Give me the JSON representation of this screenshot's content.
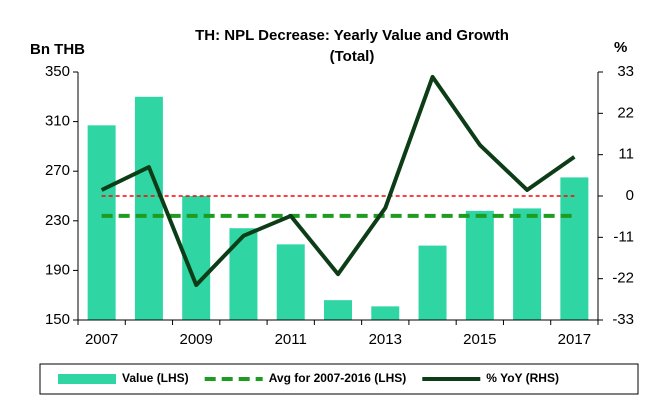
{
  "chart_data": {
    "type": "bar_line",
    "title": [
      "TH: NPL Decrease: Yearly Value and Growth",
      "(Total)"
    ],
    "y_label": "Bn THB",
    "y2_label": "%",
    "categories": [
      "2007",
      null,
      "2009",
      null,
      "2011",
      null,
      "2013",
      null,
      "2015",
      null,
      "2017"
    ],
    "series": [
      {
        "name": "Value (LHS)",
        "color": "#2fd6a4",
        "type": "bar",
        "values": [
          307,
          330,
          250,
          224,
          211,
          166,
          161,
          210,
          238,
          240,
          265
        ]
      },
      {
        "name": "Avg for 2007-2016 (LHS)",
        "color": "#1e9c22",
        "type": "hline",
        "value": 234
      },
      {
        "name": "% YoY (RHS)",
        "color": "#0d3d17",
        "type": "line",
        "axis": "y2",
        "values": [
          1.6,
          7.7,
          -23.7,
          -10.6,
          -5.3,
          -20.8,
          -3.2,
          31.7,
          13.6,
          1.6,
          10.4
        ]
      }
    ],
    "y2_reference": {
      "value": 0,
      "color": "#ff0000"
    },
    "ylim": [
      150,
      350
    ],
    "yticks": [
      150,
      190,
      230,
      270,
      310,
      350
    ],
    "y2lim": [
      -33,
      33
    ],
    "y2ticks": [
      -33,
      -22,
      -11,
      0,
      11,
      22,
      33
    ],
    "legend": "bottom"
  }
}
